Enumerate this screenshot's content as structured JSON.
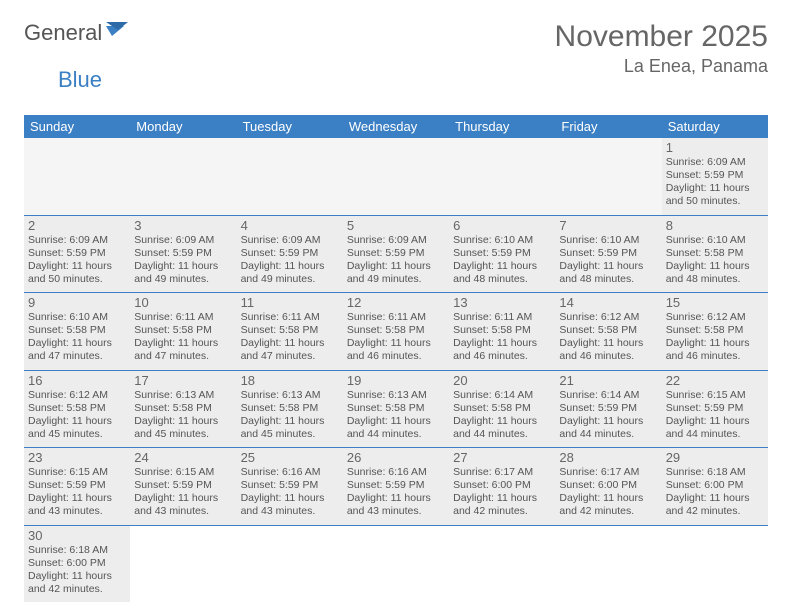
{
  "logo": {
    "text1": "General",
    "text2": "Blue"
  },
  "title": "November 2025",
  "location": "La Enea, Panama",
  "colors": {
    "header_bg": "#3b7fc4",
    "header_text": "#ffffff",
    "cell_bg_filled": "#ededed",
    "cell_bg_empty": "#f5f5f5",
    "text": "#555555",
    "border": "#3b7fc4",
    "page_bg": "#ffffff"
  },
  "fonts": {
    "title_size_pt": 22,
    "location_size_pt": 14,
    "header_size_pt": 10,
    "body_size_pt": 8,
    "daynum_size_pt": 10
  },
  "days_of_week": [
    "Sunday",
    "Monday",
    "Tuesday",
    "Wednesday",
    "Thursday",
    "Friday",
    "Saturday"
  ],
  "weeks": [
    [
      null,
      null,
      null,
      null,
      null,
      null,
      {
        "n": "1",
        "sr": "Sunrise: 6:09 AM",
        "ss": "Sunset: 5:59 PM",
        "d1": "Daylight: 11 hours",
        "d2": "and 50 minutes."
      }
    ],
    [
      {
        "n": "2",
        "sr": "Sunrise: 6:09 AM",
        "ss": "Sunset: 5:59 PM",
        "d1": "Daylight: 11 hours",
        "d2": "and 50 minutes."
      },
      {
        "n": "3",
        "sr": "Sunrise: 6:09 AM",
        "ss": "Sunset: 5:59 PM",
        "d1": "Daylight: 11 hours",
        "d2": "and 49 minutes."
      },
      {
        "n": "4",
        "sr": "Sunrise: 6:09 AM",
        "ss": "Sunset: 5:59 PM",
        "d1": "Daylight: 11 hours",
        "d2": "and 49 minutes."
      },
      {
        "n": "5",
        "sr": "Sunrise: 6:09 AM",
        "ss": "Sunset: 5:59 PM",
        "d1": "Daylight: 11 hours",
        "d2": "and 49 minutes."
      },
      {
        "n": "6",
        "sr": "Sunrise: 6:10 AM",
        "ss": "Sunset: 5:59 PM",
        "d1": "Daylight: 11 hours",
        "d2": "and 48 minutes."
      },
      {
        "n": "7",
        "sr": "Sunrise: 6:10 AM",
        "ss": "Sunset: 5:59 PM",
        "d1": "Daylight: 11 hours",
        "d2": "and 48 minutes."
      },
      {
        "n": "8",
        "sr": "Sunrise: 6:10 AM",
        "ss": "Sunset: 5:58 PM",
        "d1": "Daylight: 11 hours",
        "d2": "and 48 minutes."
      }
    ],
    [
      {
        "n": "9",
        "sr": "Sunrise: 6:10 AM",
        "ss": "Sunset: 5:58 PM",
        "d1": "Daylight: 11 hours",
        "d2": "and 47 minutes."
      },
      {
        "n": "10",
        "sr": "Sunrise: 6:11 AM",
        "ss": "Sunset: 5:58 PM",
        "d1": "Daylight: 11 hours",
        "d2": "and 47 minutes."
      },
      {
        "n": "11",
        "sr": "Sunrise: 6:11 AM",
        "ss": "Sunset: 5:58 PM",
        "d1": "Daylight: 11 hours",
        "d2": "and 47 minutes."
      },
      {
        "n": "12",
        "sr": "Sunrise: 6:11 AM",
        "ss": "Sunset: 5:58 PM",
        "d1": "Daylight: 11 hours",
        "d2": "and 46 minutes."
      },
      {
        "n": "13",
        "sr": "Sunrise: 6:11 AM",
        "ss": "Sunset: 5:58 PM",
        "d1": "Daylight: 11 hours",
        "d2": "and 46 minutes."
      },
      {
        "n": "14",
        "sr": "Sunrise: 6:12 AM",
        "ss": "Sunset: 5:58 PM",
        "d1": "Daylight: 11 hours",
        "d2": "and 46 minutes."
      },
      {
        "n": "15",
        "sr": "Sunrise: 6:12 AM",
        "ss": "Sunset: 5:58 PM",
        "d1": "Daylight: 11 hours",
        "d2": "and 46 minutes."
      }
    ],
    [
      {
        "n": "16",
        "sr": "Sunrise: 6:12 AM",
        "ss": "Sunset: 5:58 PM",
        "d1": "Daylight: 11 hours",
        "d2": "and 45 minutes."
      },
      {
        "n": "17",
        "sr": "Sunrise: 6:13 AM",
        "ss": "Sunset: 5:58 PM",
        "d1": "Daylight: 11 hours",
        "d2": "and 45 minutes."
      },
      {
        "n": "18",
        "sr": "Sunrise: 6:13 AM",
        "ss": "Sunset: 5:58 PM",
        "d1": "Daylight: 11 hours",
        "d2": "and 45 minutes."
      },
      {
        "n": "19",
        "sr": "Sunrise: 6:13 AM",
        "ss": "Sunset: 5:58 PM",
        "d1": "Daylight: 11 hours",
        "d2": "and 44 minutes."
      },
      {
        "n": "20",
        "sr": "Sunrise: 6:14 AM",
        "ss": "Sunset: 5:58 PM",
        "d1": "Daylight: 11 hours",
        "d2": "and 44 minutes."
      },
      {
        "n": "21",
        "sr": "Sunrise: 6:14 AM",
        "ss": "Sunset: 5:59 PM",
        "d1": "Daylight: 11 hours",
        "d2": "and 44 minutes."
      },
      {
        "n": "22",
        "sr": "Sunrise: 6:15 AM",
        "ss": "Sunset: 5:59 PM",
        "d1": "Daylight: 11 hours",
        "d2": "and 44 minutes."
      }
    ],
    [
      {
        "n": "23",
        "sr": "Sunrise: 6:15 AM",
        "ss": "Sunset: 5:59 PM",
        "d1": "Daylight: 11 hours",
        "d2": "and 43 minutes."
      },
      {
        "n": "24",
        "sr": "Sunrise: 6:15 AM",
        "ss": "Sunset: 5:59 PM",
        "d1": "Daylight: 11 hours",
        "d2": "and 43 minutes."
      },
      {
        "n": "25",
        "sr": "Sunrise: 6:16 AM",
        "ss": "Sunset: 5:59 PM",
        "d1": "Daylight: 11 hours",
        "d2": "and 43 minutes."
      },
      {
        "n": "26",
        "sr": "Sunrise: 6:16 AM",
        "ss": "Sunset: 5:59 PM",
        "d1": "Daylight: 11 hours",
        "d2": "and 43 minutes."
      },
      {
        "n": "27",
        "sr": "Sunrise: 6:17 AM",
        "ss": "Sunset: 6:00 PM",
        "d1": "Daylight: 11 hours",
        "d2": "and 42 minutes."
      },
      {
        "n": "28",
        "sr": "Sunrise: 6:17 AM",
        "ss": "Sunset: 6:00 PM",
        "d1": "Daylight: 11 hours",
        "d2": "and 42 minutes."
      },
      {
        "n": "29",
        "sr": "Sunrise: 6:18 AM",
        "ss": "Sunset: 6:00 PM",
        "d1": "Daylight: 11 hours",
        "d2": "and 42 minutes."
      }
    ],
    [
      {
        "n": "30",
        "sr": "Sunrise: 6:18 AM",
        "ss": "Sunset: 6:00 PM",
        "d1": "Daylight: 11 hours",
        "d2": "and 42 minutes."
      },
      null,
      null,
      null,
      null,
      null,
      null
    ]
  ]
}
